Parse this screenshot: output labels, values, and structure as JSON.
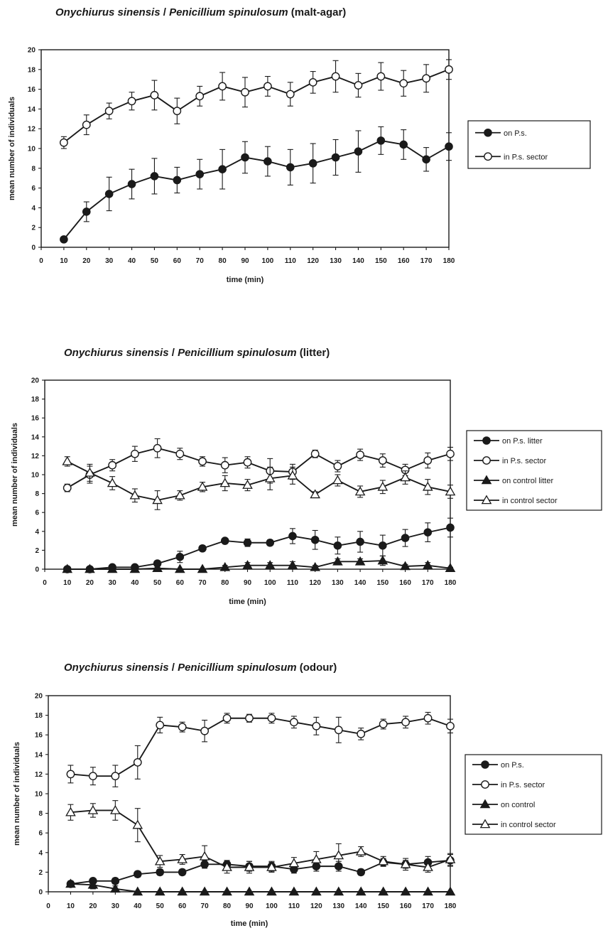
{
  "chart_data": [
    {
      "type": "line",
      "title_species": "Onychiurus sinensis",
      "title_sep": " / ",
      "title_fungus": "Penicillium spinulosum",
      "title_medium": "(malt-agar)",
      "xlabel": "time (min)",
      "ylabel": "mean number of individuals",
      "xlim": [
        0,
        180
      ],
      "ylim": [
        0,
        20
      ],
      "x_ticks": [
        "0",
        "10",
        "20",
        "30",
        "40",
        "50",
        "60",
        "70",
        "80",
        "90",
        "100",
        "110",
        "120",
        "130",
        "140",
        "150",
        "160",
        "170",
        "180"
      ],
      "y_ticks": [
        "0",
        "2",
        "4",
        "6",
        "8",
        "10",
        "12",
        "14",
        "16",
        "18",
        "20"
      ],
      "legend_position": "right",
      "x": [
        10,
        20,
        30,
        40,
        50,
        60,
        70,
        80,
        90,
        100,
        110,
        120,
        130,
        140,
        150,
        160,
        170,
        180
      ],
      "series": [
        {
          "name": "on P.s.",
          "marker": "filled-circle",
          "values": [
            0.8,
            3.6,
            5.4,
            6.4,
            7.2,
            6.8,
            7.4,
            7.9,
            9.1,
            8.7,
            8.1,
            8.5,
            9.1,
            9.7,
            10.8,
            10.4,
            8.9,
            10.2
          ],
          "errors": [
            0.2,
            1.0,
            1.7,
            1.5,
            1.8,
            1.3,
            1.5,
            2.0,
            1.6,
            1.5,
            1.8,
            2.0,
            1.8,
            2.1,
            1.4,
            1.5,
            1.2,
            1.4
          ]
        },
        {
          "name": "in P.s. sector",
          "marker": "open-circle",
          "values": [
            10.6,
            12.4,
            13.8,
            14.8,
            15.4,
            13.8,
            15.3,
            16.3,
            15.7,
            16.3,
            15.5,
            16.7,
            17.3,
            16.4,
            17.3,
            16.6,
            17.1,
            18.0
          ],
          "errors": [
            0.6,
            1.0,
            0.8,
            0.9,
            1.5,
            1.3,
            1.0,
            1.4,
            1.5,
            1.0,
            1.2,
            1.1,
            1.6,
            1.2,
            1.4,
            1.3,
            1.4,
            1.0
          ]
        }
      ]
    },
    {
      "type": "line",
      "title_species": "Onychiurus sinensis",
      "title_sep": " / ",
      "title_fungus": "Penicillium spinulosum",
      "title_medium": "(litter)",
      "xlabel": "time (min)",
      "ylabel": "mean number of individuals",
      "xlim": [
        0,
        180
      ],
      "ylim": [
        0,
        20
      ],
      "x_ticks": [
        "0",
        "10",
        "20",
        "30",
        "40",
        "50",
        "60",
        "70",
        "80",
        "90",
        "100",
        "110",
        "120",
        "130",
        "140",
        "150",
        "160",
        "170",
        "180"
      ],
      "y_ticks": [
        "0",
        "2",
        "4",
        "6",
        "8",
        "10",
        "12",
        "14",
        "16",
        "18",
        "20"
      ],
      "legend_position": "right",
      "x": [
        10,
        20,
        30,
        40,
        50,
        60,
        70,
        80,
        90,
        100,
        110,
        120,
        130,
        140,
        150,
        160,
        170,
        180
      ],
      "series": [
        {
          "name": "on P.s. litter",
          "marker": "filled-circle",
          "values": [
            0.0,
            0.0,
            0.2,
            0.2,
            0.6,
            1.3,
            2.2,
            3.0,
            2.8,
            2.8,
            3.5,
            3.1,
            2.5,
            2.9,
            2.5,
            3.3,
            3.9,
            4.4
          ],
          "errors": [
            0.05,
            0.05,
            0.2,
            0.2,
            0.3,
            0.6,
            0.3,
            0.2,
            0.4,
            0.3,
            0.8,
            1.0,
            0.9,
            1.1,
            1.1,
            0.9,
            1.0,
            1.0
          ]
        },
        {
          "name": "in P.s. sector",
          "marker": "open-circle",
          "values": [
            8.6,
            10.0,
            11.0,
            12.2,
            12.8,
            12.2,
            11.4,
            11.0,
            11.3,
            10.4,
            10.3,
            12.2,
            10.9,
            12.1,
            11.5,
            10.5,
            11.5,
            12.2
          ],
          "errors": [
            0.4,
            0.9,
            0.6,
            0.8,
            1.0,
            0.6,
            0.5,
            0.8,
            0.6,
            1.3,
            0.8,
            0.4,
            0.6,
            0.6,
            0.7,
            0.6,
            0.8,
            0.7
          ]
        },
        {
          "name": "on control litter",
          "marker": "filled-triangle",
          "values": [
            0.0,
            0.0,
            0.0,
            0.0,
            0.1,
            0.0,
            0.0,
            0.2,
            0.4,
            0.4,
            0.4,
            0.2,
            0.8,
            0.8,
            0.9,
            0.3,
            0.4,
            0.1
          ],
          "errors": [
            0.05,
            0.05,
            0.05,
            0.05,
            0.1,
            0.05,
            0.05,
            0.2,
            0.3,
            0.3,
            0.4,
            0.2,
            0.3,
            0.3,
            0.5,
            0.2,
            0.3,
            0.1
          ]
        },
        {
          "name": "in control sector",
          "marker": "open-triangle",
          "values": [
            11.4,
            10.2,
            9.1,
            7.8,
            7.3,
            7.8,
            8.7,
            9.1,
            8.9,
            9.6,
            9.9,
            7.9,
            9.4,
            8.2,
            8.7,
            9.7,
            8.7,
            8.2
          ],
          "errors": [
            0.5,
            0.9,
            0.7,
            0.7,
            1.0,
            0.5,
            0.5,
            0.8,
            0.6,
            1.2,
            0.9,
            0.3,
            0.6,
            0.6,
            0.7,
            0.7,
            0.8,
            0.7
          ]
        }
      ]
    },
    {
      "type": "line",
      "title_species": "Onychiurus sinensis",
      "title_sep": " / ",
      "title_fungus": "Penicillium spinulosum",
      "title_medium": "(odour)",
      "xlabel": "time (min)",
      "ylabel": "mean number of individuals",
      "xlim": [
        0,
        180
      ],
      "ylim": [
        0,
        20
      ],
      "x_ticks": [
        "0",
        "10",
        "20",
        "30",
        "40",
        "50",
        "60",
        "70",
        "80",
        "90",
        "100",
        "110",
        "120",
        "130",
        "140",
        "150",
        "160",
        "170",
        "180"
      ],
      "y_ticks": [
        "0",
        "2",
        "4",
        "6",
        "8",
        "10",
        "12",
        "14",
        "16",
        "18",
        "20"
      ],
      "legend_position": "right",
      "x": [
        10,
        20,
        30,
        40,
        50,
        60,
        70,
        80,
        90,
        100,
        110,
        120,
        130,
        140,
        150,
        160,
        170,
        180
      ],
      "series": [
        {
          "name": "on P.s.",
          "marker": "filled-circle",
          "values": [
            0.8,
            1.1,
            1.1,
            1.8,
            2.0,
            2.0,
            2.8,
            2.8,
            2.6,
            2.6,
            2.3,
            2.6,
            2.6,
            2.0,
            3.0,
            2.8,
            3.0,
            3.2
          ],
          "errors": [
            0.2,
            0.2,
            0.3,
            0.3,
            0.3,
            0.3,
            0.4,
            0.4,
            0.5,
            0.5,
            0.4,
            0.5,
            0.5,
            0.3,
            0.4,
            0.4,
            0.6,
            0.6
          ]
        },
        {
          "name": "in P.s. sector",
          "marker": "open-circle",
          "values": [
            12.0,
            11.8,
            11.8,
            13.2,
            17.0,
            16.8,
            16.4,
            17.7,
            17.7,
            17.7,
            17.3,
            16.9,
            16.5,
            16.1,
            17.1,
            17.3,
            17.7,
            16.9
          ],
          "errors": [
            0.9,
            0.9,
            1.1,
            1.7,
            0.8,
            0.5,
            1.1,
            0.5,
            0.4,
            0.5,
            0.6,
            0.9,
            1.3,
            0.6,
            0.5,
            0.6,
            0.6,
            0.7
          ]
        },
        {
          "name": "on control",
          "marker": "filled-triangle",
          "values": [
            0.8,
            0.7,
            0.3,
            0.0,
            0.0,
            0.0,
            0.0,
            0.0,
            0.0,
            0.0,
            0.0,
            0.0,
            0.0,
            0.0,
            0.0,
            0.0,
            0.0,
            0.0
          ],
          "errors": [
            0.3,
            0.4,
            0.3,
            0.05,
            0.05,
            0.05,
            0.05,
            0.05,
            0.05,
            0.05,
            0.05,
            0.05,
            0.05,
            0.05,
            0.05,
            0.05,
            0.05,
            0.05
          ]
        },
        {
          "name": "in control sector",
          "marker": "open-triangle",
          "values": [
            8.1,
            8.3,
            8.3,
            6.8,
            3.1,
            3.3,
            3.6,
            2.5,
            2.5,
            2.5,
            2.9,
            3.3,
            3.7,
            4.1,
            3.1,
            2.8,
            2.5,
            3.3
          ],
          "errors": [
            0.8,
            0.7,
            1.0,
            1.7,
            0.6,
            0.5,
            1.1,
            0.6,
            0.6,
            0.5,
            0.6,
            0.8,
            1.2,
            0.5,
            0.5,
            0.6,
            0.5,
            0.6
          ]
        }
      ]
    }
  ]
}
